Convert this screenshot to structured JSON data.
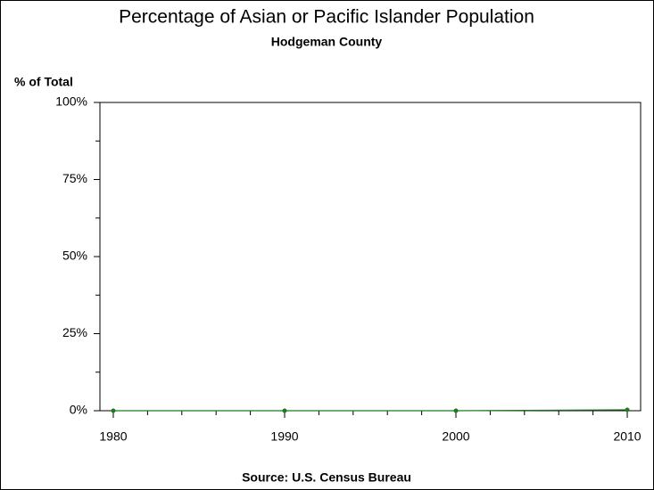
{
  "chart_data": {
    "type": "line",
    "title": "Percentage of Asian or Pacific Islander Population",
    "subtitle": "Hodgeman County",
    "y_label": "% of Total",
    "source": "Source: U.S. Census Bureau",
    "x": [
      1980,
      1990,
      2000,
      2010
    ],
    "series": [
      {
        "color": "#1f7a1f",
        "values": [
          0,
          0,
          0,
          0.3
        ]
      }
    ],
    "xlim": [
      1979.22,
      2010.78
    ],
    "xticks": [
      1980,
      1990,
      2000,
      2010
    ],
    "xminor_ticks": [
      1982,
      1984,
      1986,
      1988,
      1992,
      1994,
      1996,
      1998,
      2002,
      2004,
      2006,
      2008
    ],
    "ylim": [
      0,
      100
    ],
    "yticks": [
      {
        "value": 0,
        "label": "0%"
      },
      {
        "value": 25,
        "label": "25%"
      },
      {
        "value": 50,
        "label": "50%"
      },
      {
        "value": 75,
        "label": "75%"
      },
      {
        "value": 100,
        "label": "100%"
      }
    ],
    "yminor_ticks": [
      12.5,
      37.5,
      62.5,
      87.5
    ]
  }
}
